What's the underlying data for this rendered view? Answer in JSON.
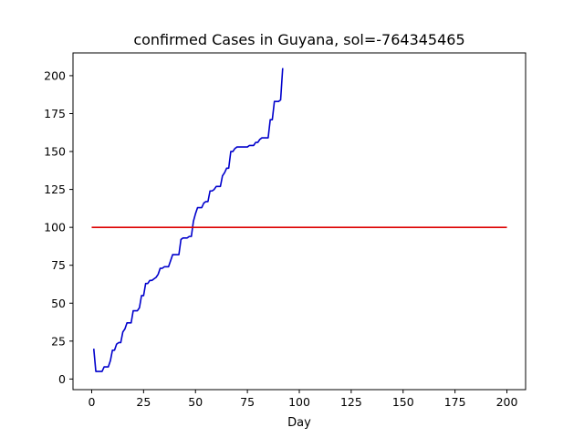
{
  "chart_data": {
    "type": "line",
    "title": "confirmed Cases in Guyana, sol=-764345465",
    "xlabel": "Day",
    "ylabel": "",
    "xlim": [
      -9,
      209
    ],
    "ylim": [
      -7,
      215
    ],
    "xticks": [
      0,
      25,
      50,
      75,
      100,
      125,
      150,
      175,
      200
    ],
    "yticks": [
      0,
      25,
      50,
      75,
      100,
      125,
      150,
      175,
      200
    ],
    "grid": false,
    "series": [
      {
        "color": "#0000cc",
        "x": [
          1,
          2,
          3,
          4,
          5,
          6,
          7,
          8,
          9,
          10,
          11,
          12,
          13,
          14,
          15,
          16,
          17,
          18,
          19,
          20,
          21,
          22,
          23,
          24,
          25,
          26,
          27,
          28,
          29,
          30,
          31,
          32,
          33,
          34,
          35,
          36,
          37,
          38,
          39,
          40,
          41,
          42,
          43,
          44,
          45,
          46,
          47,
          48,
          49,
          50,
          51,
          52,
          53,
          54,
          55,
          56,
          57,
          58,
          59,
          60,
          61,
          62,
          63,
          64,
          65,
          66,
          67,
          68,
          69,
          70,
          71,
          72,
          73,
          74,
          75,
          76,
          77,
          78,
          79,
          80,
          81,
          82,
          83,
          84,
          85,
          86,
          87,
          88,
          89,
          90,
          91,
          92
        ],
        "y": [
          20,
          5,
          5,
          5,
          5,
          8,
          8,
          8,
          12,
          19,
          19,
          23,
          24,
          24,
          31,
          33,
          37,
          37,
          37,
          45,
          45,
          45,
          47,
          55,
          55,
          63,
          63,
          65,
          65,
          66,
          67,
          69,
          73,
          73,
          74,
          74,
          74,
          78,
          82,
          82,
          82,
          82,
          92,
          93,
          93,
          93,
          94,
          94,
          104,
          109,
          113,
          113,
          113,
          116,
          117,
          117,
          124,
          124,
          125,
          127,
          127,
          127,
          134,
          136,
          139,
          139,
          150,
          150,
          152,
          153,
          153,
          153,
          153,
          153,
          153,
          154,
          154,
          154,
          156,
          156,
          158,
          159,
          159,
          159,
          159,
          171,
          171,
          183,
          183,
          183,
          184,
          205
        ]
      },
      {
        "color": "#dd0000",
        "x": [
          0,
          200
        ],
        "y": [
          100,
          100
        ]
      }
    ]
  }
}
